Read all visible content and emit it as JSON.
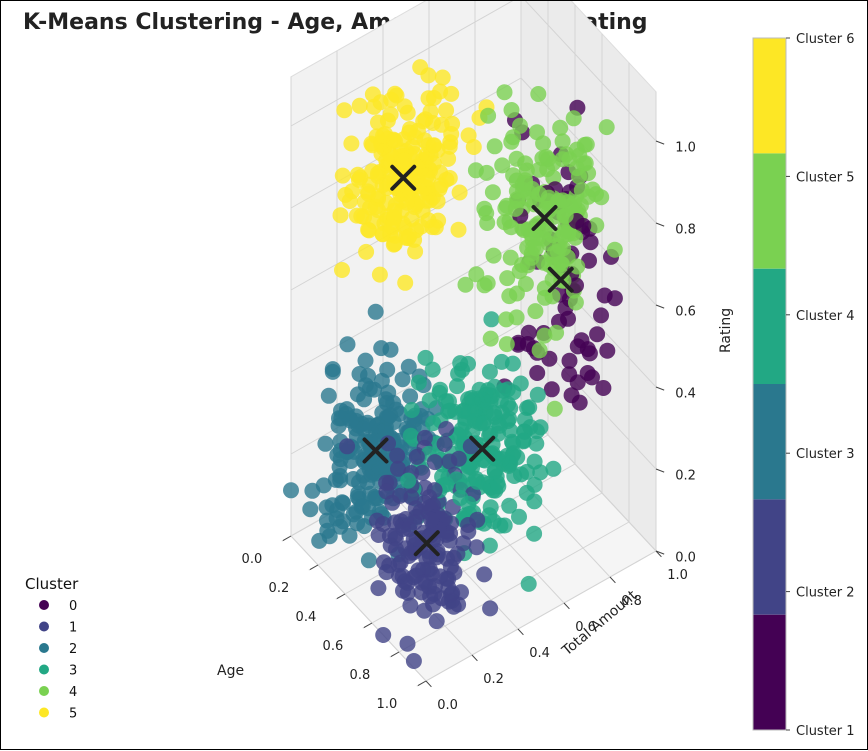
{
  "chart_data": {
    "type": "scatter",
    "subtype": "3d-scatter",
    "title": "K-Means Clustering - Age, Amount_Spent & Rating",
    "xlabel": "Age",
    "ylabel": "Total Amount",
    "zlabel": "Rating",
    "xlim": [
      0,
      1
    ],
    "ylim": [
      0,
      1
    ],
    "zlim": [
      0,
      1
    ],
    "x_ticks": [
      "0.0",
      "0.2",
      "0.4",
      "0.6",
      "0.8",
      "1.0"
    ],
    "y_ticks": [
      "0.0",
      "0.2",
      "0.4",
      "0.6",
      "0.8",
      "1.0"
    ],
    "z_ticks": [
      "0.0",
      "0.2",
      "0.4",
      "0.6",
      "0.8",
      "1.0"
    ],
    "grid": true,
    "legend": {
      "title": "Cluster",
      "placement": "lower-left",
      "entries": [
        {
          "label": "0",
          "color": "#440154"
        },
        {
          "label": "1",
          "color": "#414487"
        },
        {
          "label": "2",
          "color": "#2a788e"
        },
        {
          "label": "3",
          "color": "#22a884"
        },
        {
          "label": "4",
          "color": "#7ad151"
        },
        {
          "label": "5",
          "color": "#fde725"
        }
      ]
    },
    "colorbar": {
      "placement": "right",
      "labels": [
        "Cluster 1",
        "Cluster 2",
        "Cluster 3",
        "Cluster 4",
        "Cluster 5",
        "Cluster 6"
      ],
      "colors": [
        "#440154",
        "#414487",
        "#2a788e",
        "#22a884",
        "#7ad151",
        "#fde725"
      ]
    },
    "series": [
      {
        "cluster": 0,
        "color": "#440154",
        "center": [
          0.55,
          0.85,
          0.55
        ],
        "spread": [
          0.28,
          0.15,
          0.3
        ],
        "count": 70
      },
      {
        "cluster": 1,
        "color": "#414487",
        "center": [
          0.75,
          0.15,
          0.2
        ],
        "spread": [
          0.2,
          0.15,
          0.18
        ],
        "count": 150
      },
      {
        "cluster": 2,
        "color": "#2a788e",
        "center": [
          0.2,
          0.25,
          0.2
        ],
        "spread": [
          0.18,
          0.2,
          0.18
        ],
        "count": 200
      },
      {
        "cluster": 3,
        "color": "#22a884",
        "center": [
          0.65,
          0.45,
          0.3
        ],
        "spread": [
          0.22,
          0.2,
          0.18
        ],
        "count": 200
      },
      {
        "cluster": 4,
        "color": "#7ad151",
        "center": [
          0.6,
          0.75,
          0.75
        ],
        "spread": [
          0.22,
          0.18,
          0.2
        ],
        "count": 170
      },
      {
        "cluster": 5,
        "color": "#fde725",
        "center": [
          0.15,
          0.4,
          0.8
        ],
        "spread": [
          0.15,
          0.2,
          0.18
        ],
        "count": 200
      }
    ],
    "centroids": [
      [
        0.55,
        0.85,
        0.55
      ],
      [
        0.75,
        0.15,
        0.2
      ],
      [
        0.2,
        0.25,
        0.2
      ],
      [
        0.65,
        0.45,
        0.3
      ],
      [
        0.6,
        0.75,
        0.75
      ],
      [
        0.15,
        0.4,
        0.8
      ]
    ]
  }
}
